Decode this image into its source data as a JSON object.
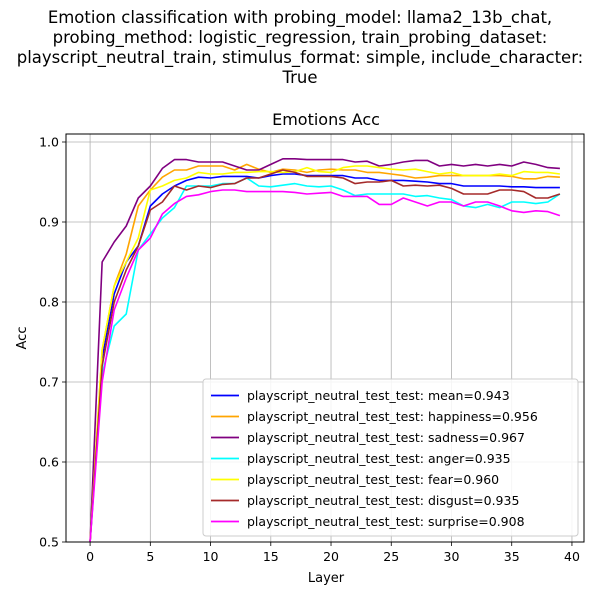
{
  "suptitle_lines": [
    "Emotion classification with probing_model: llama2_13b_chat,",
    "probing_method: logistic_regression, train_probing_dataset:",
    "playscript_neutral_train, stimulus_format: simple, include_character:",
    "True"
  ],
  "chart_data": {
    "type": "line",
    "title": "Emotions Acc",
    "xlabel": "Layer",
    "ylabel": "Acc",
    "xlim": [
      -2,
      41
    ],
    "ylim": [
      0.5,
      1.01
    ],
    "xticks": [
      "0",
      "5",
      "10",
      "15",
      "20",
      "25",
      "30",
      "35",
      "40"
    ],
    "yticks": [
      "0.5",
      "0.6",
      "0.7",
      "0.8",
      "0.9",
      "1.0"
    ],
    "grid": true,
    "legend_position": "lower-right",
    "x": [
      0,
      1,
      2,
      3,
      4,
      5,
      6,
      7,
      8,
      9,
      10,
      11,
      12,
      13,
      14,
      15,
      16,
      17,
      18,
      19,
      20,
      21,
      22,
      23,
      24,
      25,
      26,
      27,
      28,
      29,
      30,
      31,
      32,
      33,
      34,
      35,
      36,
      37,
      38,
      39
    ],
    "series": [
      {
        "name": "playscript_neutral_test_test: mean=0.943",
        "color": "#0000ff",
        "values": [
          0.5,
          0.73,
          0.81,
          0.85,
          0.87,
          0.92,
          0.935,
          0.945,
          0.952,
          0.956,
          0.955,
          0.957,
          0.957,
          0.957,
          0.955,
          0.958,
          0.96,
          0.96,
          0.958,
          0.958,
          0.958,
          0.958,
          0.955,
          0.955,
          0.952,
          0.952,
          0.952,
          0.951,
          0.95,
          0.948,
          0.948,
          0.945,
          0.945,
          0.945,
          0.945,
          0.944,
          0.944,
          0.943,
          0.943,
          0.943
        ]
      },
      {
        "name": "playscript_neutral_test_test: happiness=0.956",
        "color": "#ffa500",
        "values": [
          0.5,
          0.74,
          0.82,
          0.86,
          0.92,
          0.94,
          0.956,
          0.965,
          0.965,
          0.97,
          0.97,
          0.97,
          0.965,
          0.972,
          0.966,
          0.962,
          0.966,
          0.965,
          0.962,
          0.965,
          0.966,
          0.965,
          0.965,
          0.962,
          0.962,
          0.96,
          0.958,
          0.955,
          0.956,
          0.958,
          0.958,
          0.958,
          0.958,
          0.958,
          0.958,
          0.957,
          0.954,
          0.954,
          0.957,
          0.956
        ]
      },
      {
        "name": "playscript_neutral_test_test: sadness=0.967",
        "color": "#800080",
        "values": [
          0.5,
          0.85,
          0.875,
          0.895,
          0.93,
          0.945,
          0.967,
          0.978,
          0.978,
          0.975,
          0.975,
          0.975,
          0.97,
          0.965,
          0.965,
          0.972,
          0.979,
          0.979,
          0.978,
          0.978,
          0.978,
          0.978,
          0.975,
          0.976,
          0.97,
          0.972,
          0.975,
          0.977,
          0.977,
          0.97,
          0.972,
          0.97,
          0.972,
          0.97,
          0.972,
          0.97,
          0.975,
          0.972,
          0.968,
          0.967
        ]
      },
      {
        "name": "playscript_neutral_test_test: anger=0.935",
        "color": "#00ffff",
        "values": [
          0.5,
          0.71,
          0.77,
          0.785,
          0.865,
          0.885,
          0.905,
          0.918,
          0.945,
          0.945,
          0.945,
          0.948,
          0.948,
          0.955,
          0.945,
          0.944,
          0.946,
          0.948,
          0.945,
          0.944,
          0.945,
          0.94,
          0.933,
          0.935,
          0.935,
          0.935,
          0.935,
          0.932,
          0.933,
          0.93,
          0.928,
          0.92,
          0.918,
          0.922,
          0.918,
          0.925,
          0.925,
          0.923,
          0.925,
          0.935
        ]
      },
      {
        "name": "playscript_neutral_test_test: fear=0.960",
        "color": "#ffff00",
        "values": [
          0.5,
          0.74,
          0.82,
          0.85,
          0.88,
          0.94,
          0.945,
          0.952,
          0.955,
          0.962,
          0.96,
          0.96,
          0.962,
          0.962,
          0.963,
          0.963,
          0.962,
          0.963,
          0.968,
          0.963,
          0.962,
          0.968,
          0.97,
          0.97,
          0.968,
          0.966,
          0.965,
          0.966,
          0.963,
          0.96,
          0.962,
          0.958,
          0.958,
          0.958,
          0.96,
          0.958,
          0.963,
          0.962,
          0.962,
          0.96
        ]
      },
      {
        "name": "playscript_neutral_test_test: disgust=0.935",
        "color": "#a52a2a",
        "values": [
          0.5,
          0.72,
          0.8,
          0.84,
          0.87,
          0.915,
          0.925,
          0.945,
          0.94,
          0.945,
          0.943,
          0.947,
          0.948,
          0.955,
          0.955,
          0.96,
          0.965,
          0.962,
          0.957,
          0.957,
          0.957,
          0.955,
          0.948,
          0.95,
          0.95,
          0.952,
          0.945,
          0.946,
          0.945,
          0.946,
          0.942,
          0.935,
          0.935,
          0.935,
          0.94,
          0.94,
          0.938,
          0.93,
          0.93,
          0.935
        ]
      },
      {
        "name": "playscript_neutral_test_test: surprise=0.908",
        "color": "#ff00ff",
        "values": [
          0.5,
          0.7,
          0.79,
          0.83,
          0.865,
          0.88,
          0.91,
          0.923,
          0.932,
          0.934,
          0.938,
          0.94,
          0.94,
          0.938,
          0.938,
          0.938,
          0.938,
          0.937,
          0.935,
          0.936,
          0.937,
          0.932,
          0.932,
          0.932,
          0.922,
          0.922,
          0.93,
          0.925,
          0.92,
          0.925,
          0.925,
          0.92,
          0.925,
          0.925,
          0.92,
          0.914,
          0.912,
          0.914,
          0.913,
          0.908
        ]
      }
    ]
  }
}
